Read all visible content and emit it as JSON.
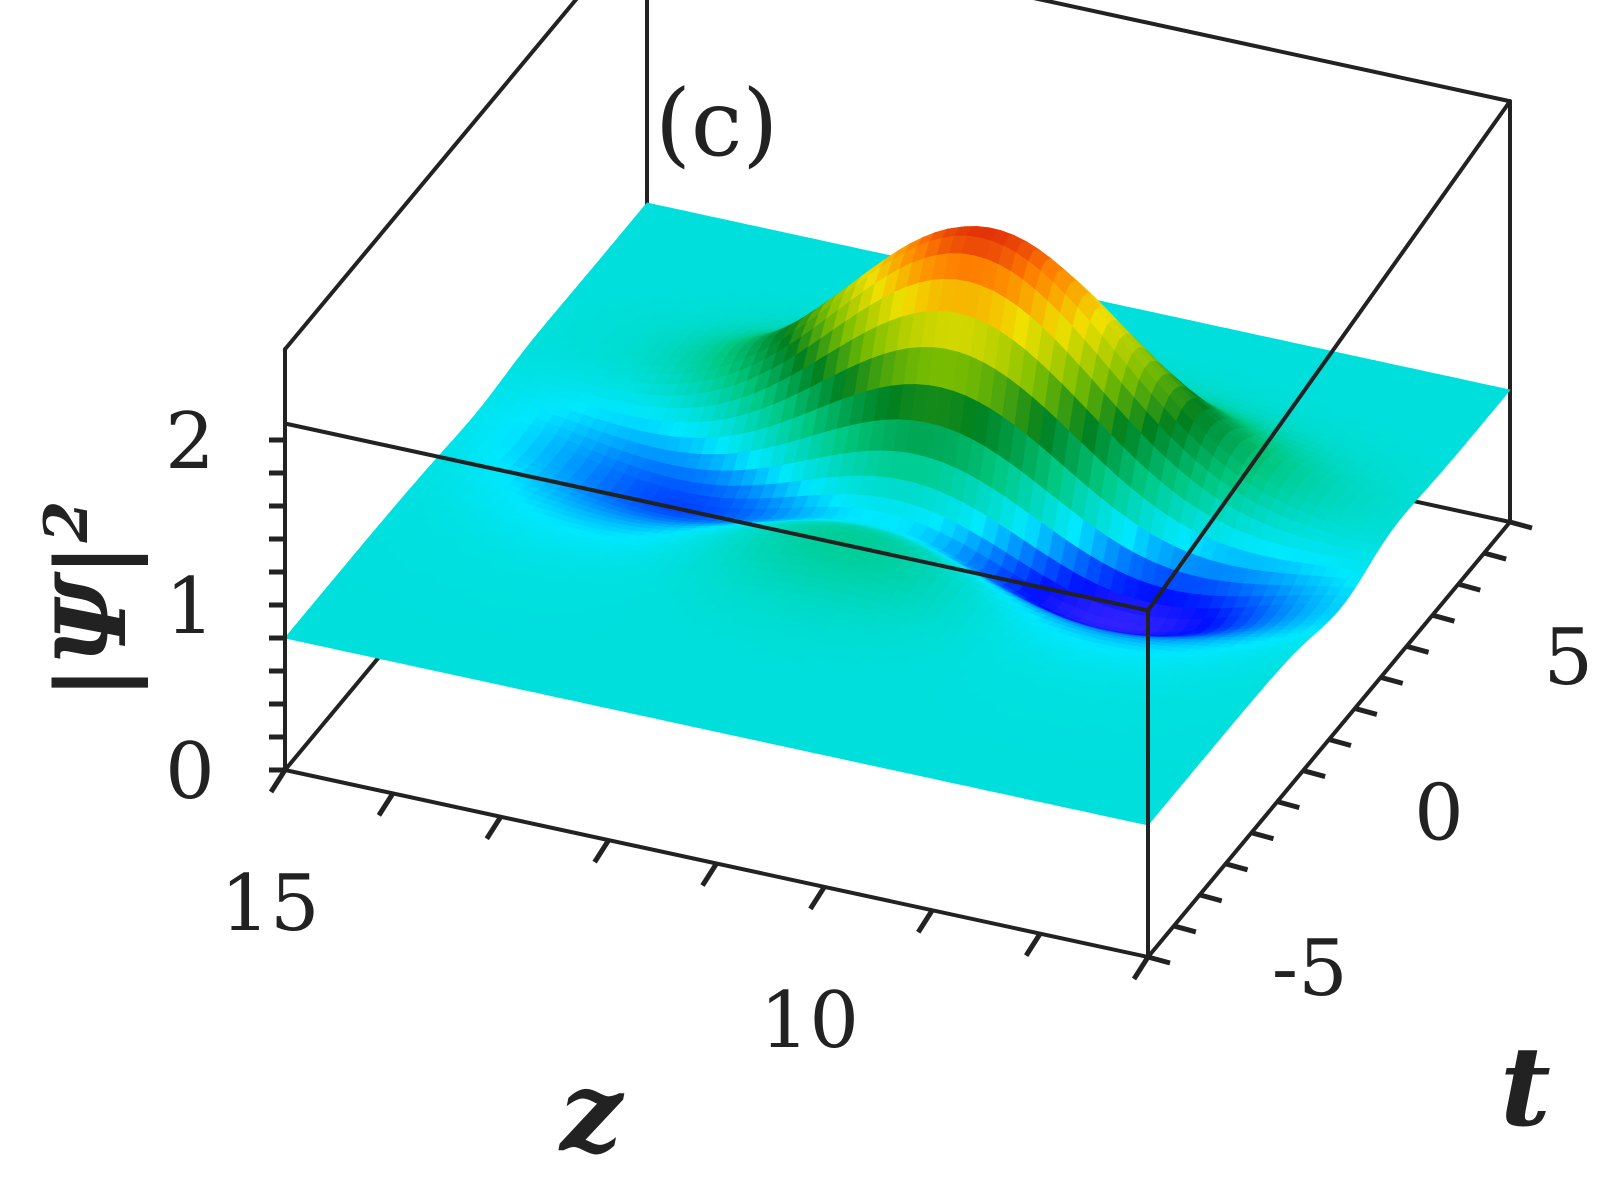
{
  "panel_label": "(c)",
  "chart_data": {
    "type": "surface",
    "title": "",
    "xlabel": "z",
    "ylabel": "t",
    "zlabel_main": "|Ψ|",
    "zlabel_exp": "2",
    "xlim": [
      7,
      15
    ],
    "ylim": [
      -7,
      7
    ],
    "zlim": [
      0,
      2
    ],
    "x_ticks": [
      {
        "value": 15,
        "label": "15"
      },
      {
        "value": 10,
        "label": "10"
      }
    ],
    "y_ticks": [
      {
        "value": -5,
        "label": "-5"
      },
      {
        "value": 0,
        "label": "0"
      },
      {
        "value": 5,
        "label": "5"
      }
    ],
    "z_ticks": [
      {
        "value": 0,
        "label": "0"
      },
      {
        "value": 1,
        "label": "1"
      },
      {
        "value": 2,
        "label": "2"
      }
    ],
    "background_level": 0.8,
    "peak": {
      "z": 10.7,
      "t": 2.2,
      "value": 2.2
    },
    "trough_band": {
      "z_center": 10.5,
      "t_offset": -1.6,
      "value": 0.1
    },
    "colormap": [
      "#ff80ff",
      "#8040ff",
      "#0010ff",
      "#00e8ff",
      "#00c880",
      "#008020",
      "#80c000",
      "#f0e000",
      "#ff8000",
      "#d00010"
    ],
    "grid": false,
    "legend": "none"
  }
}
